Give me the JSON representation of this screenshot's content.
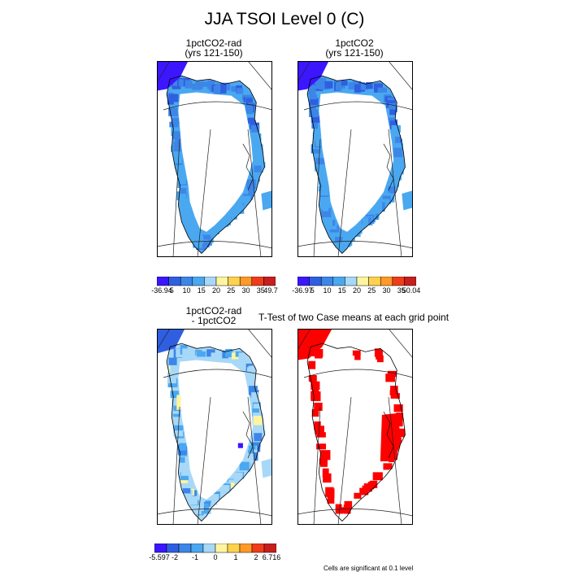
{
  "figure": {
    "title": "JJA TSOI Level 0 (C)"
  },
  "panels": [
    {
      "title1": "1pctCO2-rad",
      "title2": "(yrs 121-150)",
      "style": "blue"
    },
    {
      "title1": "1pctCO2",
      "title2": "(yrs 121-150)",
      "style": "blue"
    },
    {
      "title1": "1pctCO2-rad",
      "title2": "- 1pctCO2",
      "style": "diff"
    },
    {
      "title1": "T-Test of two Case means at each grid point",
      "title2": "",
      "style": "red"
    }
  ],
  "colorbars": [
    {
      "labels": [
        "-36.94",
        "5",
        "10",
        "15",
        "20",
        "25",
        "30",
        "35",
        "49.7"
      ],
      "colors": [
        "#3b16ff",
        "#2f5fe0",
        "#3d86e8",
        "#4aa8f0",
        "#a8d8f8",
        "#fff5a0",
        "#ffd24d",
        "#ff9a26",
        "#f03c1a",
        "#c71e1e"
      ]
    },
    {
      "labels": [
        "-36.97",
        "5",
        "10",
        "15",
        "20",
        "25",
        "30",
        "35",
        "50.04"
      ],
      "colors": [
        "#3b16ff",
        "#2f5fe0",
        "#3d86e8",
        "#4aa8f0",
        "#a8d8f8",
        "#fff5a0",
        "#ffd24d",
        "#ff9a26",
        "#f03c1a",
        "#c71e1e"
      ]
    },
    {
      "labels": [
        "-5.597",
        "-2",
        "-1",
        "0",
        "1",
        "2",
        "6.716"
      ],
      "colors": [
        "#3b16ff",
        "#2f5fe0",
        "#3d86e8",
        "#4aa8f0",
        "#a8d8f8",
        "#fff5a0",
        "#ffd24d",
        "#ff9a26",
        "#f03c1a",
        "#c71e1e"
      ]
    }
  ],
  "footnote": "Cells are significant at 0.1 level"
}
